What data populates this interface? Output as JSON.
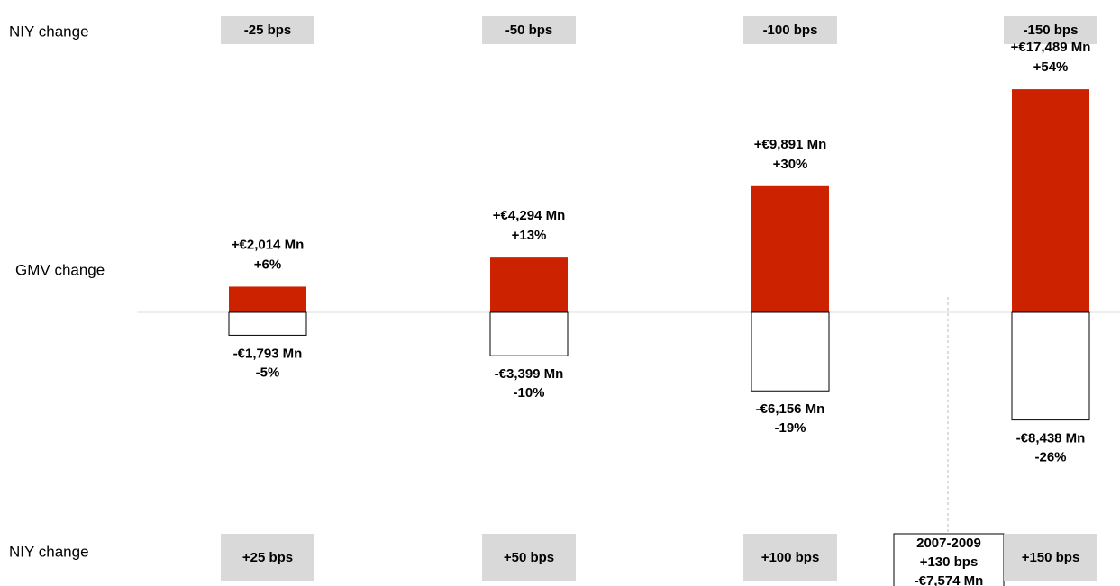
{
  "chart_data": {
    "type": "bar",
    "top_label": "NIY change",
    "middle_label": "GMV change",
    "bottom_label": "NIY change",
    "categories": [
      "-25 bps",
      "-50 bps",
      "-100 bps",
      "-150 bps"
    ],
    "bottom_categories": [
      "+25 bps",
      "+50 bps",
      "+100 bps",
      "+150 bps"
    ],
    "series": [
      {
        "color": "#cc2200",
        "values": [
          2014,
          4294,
          9891,
          17489
        ],
        "value_labels": [
          "+€2,014 Mn",
          "+€4,294 Mn",
          "+€9,891 Mn",
          "+€17,489 Mn"
        ],
        "percent_labels": [
          "+6%",
          "+13%",
          "+30%",
          "+54%"
        ]
      },
      {
        "color": "#ffffff",
        "values": [
          -1793,
          -3399,
          -6156,
          -8438
        ],
        "value_labels": [
          "-€1,793 Mn",
          "-€3,399 Mn",
          "-€6,156 Mn",
          "-€8,438 Mn"
        ],
        "percent_labels": [
          "-5%",
          "-10%",
          "-19%",
          "-26%"
        ]
      }
    ],
    "ylim": [
      -20000,
      20000
    ],
    "annotation": [
      "2007-2009",
      "+130 bps",
      "-€7,574 Mn"
    ]
  }
}
